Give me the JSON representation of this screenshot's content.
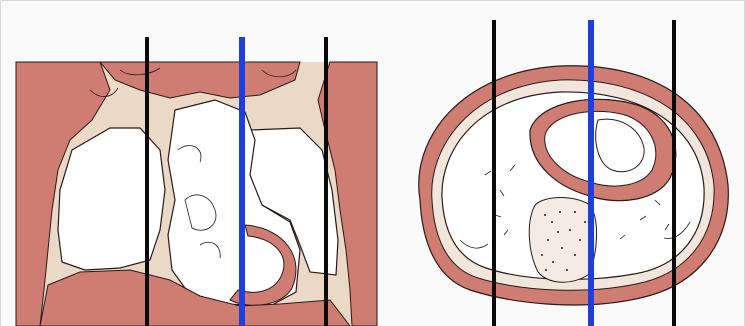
{
  "image": {
    "description_free": true,
    "panels": [
      {
        "name": "coronal-chest-segmentation",
        "line_colors": [
          "#000000",
          "#1f3fdd",
          "#000000"
        ]
      },
      {
        "name": "axial-chest-segmentation",
        "line_colors": [
          "#000000",
          "#1f3fdd",
          "#000000"
        ]
      }
    ],
    "colors": {
      "tissue": "#cf7c72",
      "tissue_light": "#e6c9b8",
      "fat": "#ead9c6",
      "outline": "#2a1a18",
      "marker_black": "#0a0a0a",
      "marker_blue": "#1f3fdd"
    }
  }
}
